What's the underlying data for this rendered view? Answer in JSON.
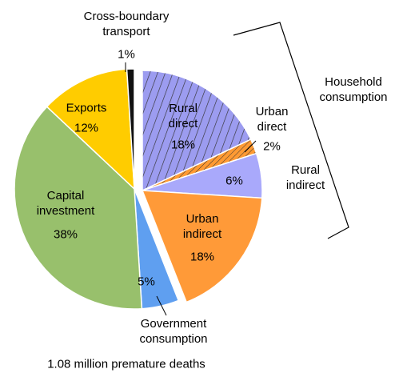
{
  "chart_data": {
    "type": "pie",
    "categories": [
      "Rural direct",
      "Urban direct",
      "Rural indirect",
      "Urban indirect",
      "Government consumption",
      "Capital investment",
      "Exports",
      "Cross-boundary transport"
    ],
    "values": [
      18,
      2,
      6,
      18,
      5,
      38,
      12,
      1
    ],
    "value_labels": [
      "18%",
      "2%",
      "6%",
      "18%",
      "5%",
      "38%",
      "12%",
      "1%"
    ],
    "colors": [
      "#9c9cf0",
      "#ff9a33",
      "#a9a9fb",
      "#ff9a38",
      "#5f9ff0",
      "#98c06c",
      "#ffcc00",
      "#111111"
    ],
    "hatch": [
      true,
      true,
      false,
      false,
      false,
      false,
      false,
      false
    ],
    "exploded": [
      true,
      true,
      true,
      true,
      false,
      false,
      false,
      false
    ],
    "annotations": [
      "Household consumption"
    ],
    "subtitle": "1.08 million premature deaths"
  }
}
